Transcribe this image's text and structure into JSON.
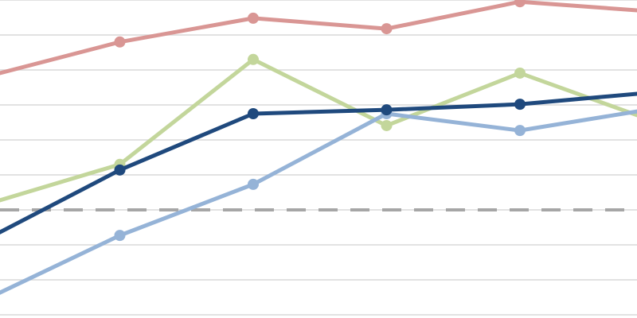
{
  "chart_data": {
    "type": "line",
    "categories": [
      null,
      null,
      null,
      null,
      null,
      null
    ],
    "ylim": [
      0,
      9
    ],
    "yticks": [
      0,
      1,
      2,
      3,
      4,
      5,
      6,
      7,
      8,
      9
    ],
    "grid": true,
    "reference_line": {
      "value": 3,
      "color": "#a6a6a6",
      "dashed": true
    },
    "series": [
      {
        "color": "#d99694",
        "values": [
          6.81,
          7.8,
          8.48,
          8.18,
          8.95,
          8.67
        ]
      },
      {
        "color": "#c3d69b",
        "values": [
          3.16,
          4.3,
          7.3,
          5.41,
          6.91,
          5.54
        ]
      },
      {
        "color": "#95b3d7",
        "values": [
          0.45,
          2.27,
          3.73,
          5.75,
          5.27,
          5.89
        ]
      },
      {
        "color": "#1f497d",
        "values": [
          2.16,
          4.14,
          5.75,
          5.86,
          6.02,
          6.36
        ]
      }
    ]
  }
}
